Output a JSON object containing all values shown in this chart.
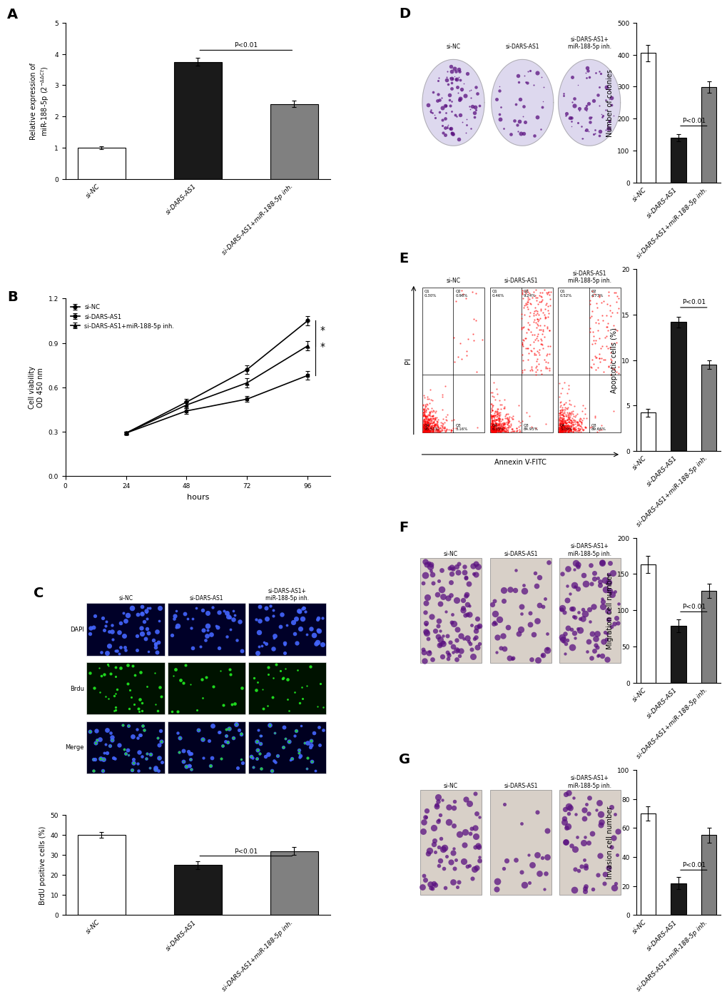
{
  "panel_A": {
    "categories": [
      "si-NC",
      "si-DARS-AS1",
      "si-DARS-AS1+miR-188-5p inh."
    ],
    "values": [
      1.0,
      3.75,
      2.4
    ],
    "errors": [
      0.05,
      0.12,
      0.1
    ],
    "colors": [
      "white",
      "#1a1a1a",
      "#808080"
    ],
    "ylabel": "Relative expression of\nmiR-188-5p (2$^{-\\Delta\\Delta Ct}$)",
    "ylim": [
      0,
      5
    ],
    "yticks": [
      0,
      1,
      2,
      3,
      4,
      5
    ],
    "sig_line": [
      1,
      2
    ],
    "sig_text": "P<0.01",
    "label": "A"
  },
  "panel_B": {
    "hours": [
      24,
      48,
      72,
      96
    ],
    "siNC": [
      0.29,
      0.5,
      0.72,
      1.05
    ],
    "siDARSAS1": [
      0.29,
      0.44,
      0.52,
      0.68
    ],
    "siDARSAS1_inh": [
      0.29,
      0.48,
      0.63,
      0.88
    ],
    "siNC_err": [
      0.01,
      0.02,
      0.03,
      0.03
    ],
    "siDARSAS1_err": [
      0.01,
      0.02,
      0.02,
      0.03
    ],
    "siDARSAS1_inh_err": [
      0.01,
      0.02,
      0.03,
      0.03
    ],
    "ylabel": "Cell viability\nOD 450 nm",
    "xlabel": "hours",
    "ylim": [
      0.0,
      1.2
    ],
    "yticks": [
      0.0,
      0.3,
      0.6,
      0.9,
      1.2
    ],
    "xticks": [
      0,
      24,
      48,
      72,
      96
    ],
    "label": "B",
    "legend": [
      "si-NC",
      "si-DARS-AS1",
      "si-DARS-AS1+miR-188-5p inh."
    ]
  },
  "panel_C_bar": {
    "categories": [
      "si-NC",
      "si-DARS-AS1",
      "si-DARS-AS1+miR-188-5p inh."
    ],
    "values": [
      40,
      25,
      32
    ],
    "errors": [
      1.5,
      2.0,
      2.0
    ],
    "colors": [
      "white",
      "#1a1a1a",
      "#808080"
    ],
    "ylabel": "BrdU positive cells (%)",
    "ylim": [
      0,
      50
    ],
    "yticks": [
      0,
      10,
      20,
      30,
      40,
      50
    ],
    "sig_line": [
      1,
      2
    ],
    "sig_text": "P<0.01",
    "label": "C"
  },
  "panel_D_bar": {
    "categories": [
      "si-NC",
      "si-DARS-AS1",
      "si-DARS-AS1+miR-188-5p inh."
    ],
    "values": [
      405,
      140,
      298
    ],
    "errors": [
      25,
      12,
      18
    ],
    "colors": [
      "white",
      "#1a1a1a",
      "#808080"
    ],
    "ylabel": "Number of colonies",
    "ylim": [
      0,
      500
    ],
    "yticks": [
      0,
      100,
      200,
      300,
      400,
      500
    ],
    "sig_line": [
      1,
      2
    ],
    "sig_text": "P<0.01",
    "label": "D"
  },
  "panel_E_bar": {
    "categories": [
      "si-NC",
      "si-DARS-AS1",
      "si-DARS-AS1+miR-188-5p inh."
    ],
    "values": [
      4.2,
      14.2,
      9.5
    ],
    "errors": [
      0.4,
      0.6,
      0.5
    ],
    "colors": [
      "white",
      "#1a1a1a",
      "#808080"
    ],
    "ylabel": "Apoptotic cells (%)",
    "ylim": [
      0,
      20
    ],
    "yticks": [
      0,
      5,
      10,
      15,
      20
    ],
    "sig_line": [
      1,
      2
    ],
    "sig_text": "P<0.01",
    "label": "E"
  },
  "panel_F_bar": {
    "categories": [
      "si-NC",
      "si-DARS-AS1",
      "si-DARS-AS1+miR-188-5p inh."
    ],
    "values": [
      163,
      79,
      127
    ],
    "errors": [
      12,
      9,
      10
    ],
    "colors": [
      "white",
      "#1a1a1a",
      "#808080"
    ],
    "ylabel": "Migration cell number",
    "ylim": [
      0,
      200
    ],
    "yticks": [
      0,
      50,
      100,
      150,
      200
    ],
    "sig_line": [
      1,
      2
    ],
    "sig_text": "P<0.01",
    "label": "F"
  },
  "panel_G_bar": {
    "categories": [
      "si-NC",
      "si-DARS-AS1",
      "si-DARS-AS1+miR-188-5p inh."
    ],
    "values": [
      70,
      22,
      55
    ],
    "errors": [
      5,
      4,
      5
    ],
    "colors": [
      "white",
      "#1a1a1a",
      "#808080"
    ],
    "ylabel": "Invasion cell number",
    "ylim": [
      0,
      100
    ],
    "yticks": [
      0,
      20,
      40,
      60,
      80,
      100
    ],
    "sig_line": [
      1,
      2
    ],
    "sig_text": "P<0.01",
    "label": "G"
  },
  "flow_data": [
    {
      "q1": "0.30%",
      "q2": "0.96%",
      "q3": "3.16%",
      "q4": "95.51%",
      "label": "si-NC"
    },
    {
      "q1": "0.46%",
      "q2": "9.24%",
      "q3": "84.95%",
      "q4": "6.35%",
      "label": "si-DARS-AS1"
    },
    {
      "q1": "0.52%",
      "q2": "4.73%",
      "q3": "89.66%",
      "q4": "5.09%",
      "label": "si-DARS-AS1\nmiR-188-5p inh."
    }
  ],
  "bg_color": "#ffffff",
  "bar_width": 0.5,
  "dapi_color": "#000030",
  "brdu_color": "#001000",
  "merge_color": "#000018",
  "transwell_bg": "#e8e4e0",
  "colony_bg": "#ddd8ee"
}
